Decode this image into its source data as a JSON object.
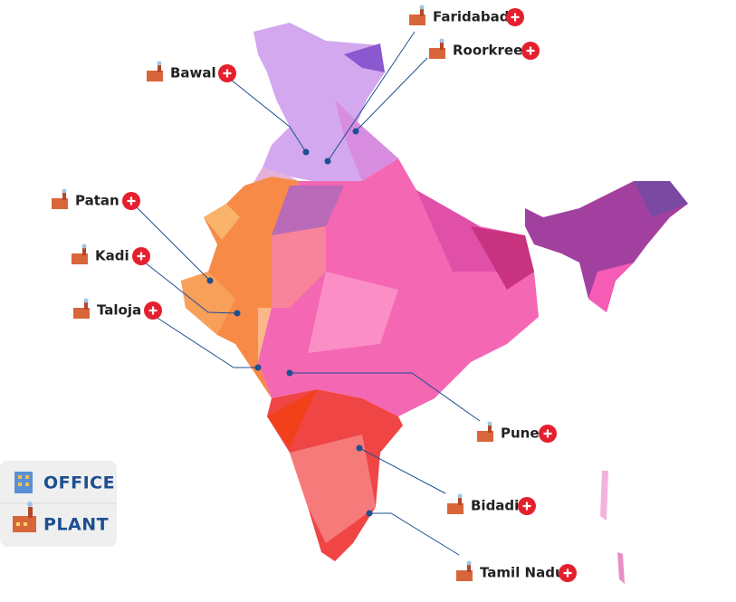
{
  "locations": [
    {
      "label": "Faridabad"
    },
    {
      "label": "Roorkree"
    },
    {
      "label": "Bawal"
    },
    {
      "label": "Patan"
    },
    {
      "label": "Kadi"
    },
    {
      "label": "Taloja"
    },
    {
      "label": "Pune"
    },
    {
      "label": "Bidadi"
    },
    {
      "label": "Tamil Nadu"
    }
  ],
  "legend": [
    {
      "label": "OFFICE"
    },
    {
      "label": "PLANT"
    }
  ]
}
